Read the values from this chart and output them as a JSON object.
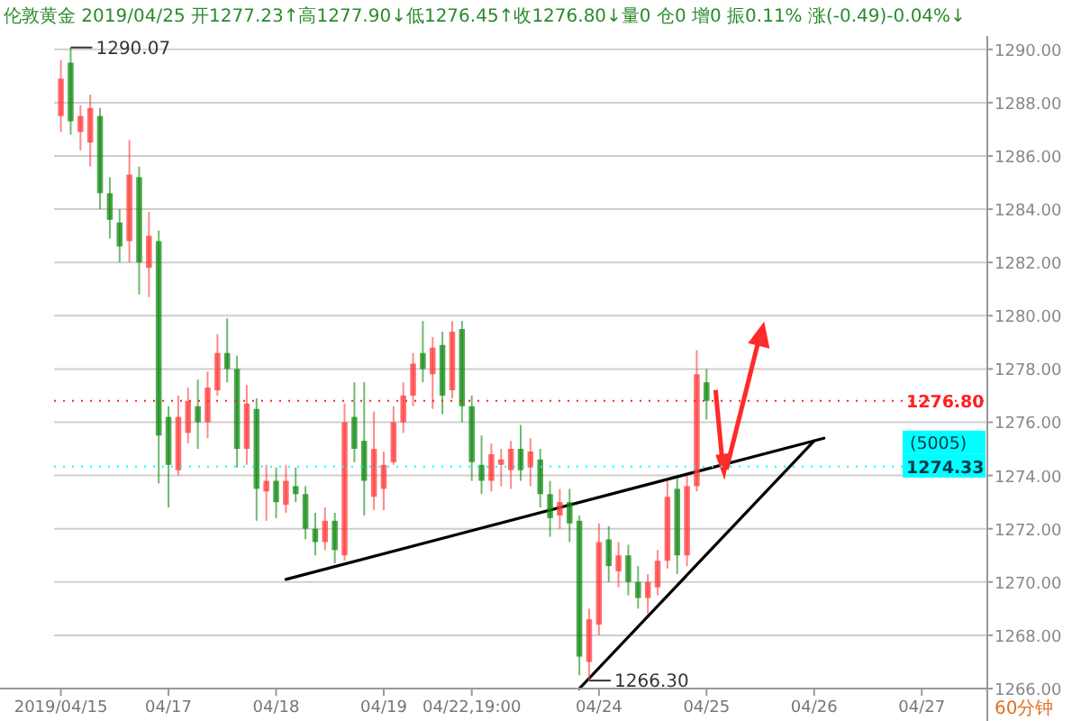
{
  "chart_data": {
    "type": "candlestick",
    "title": "伦敦黄金 2019/04/25 开1277.23↑高1277.90↓低1276.45↑收1276.80↓量0 仓0 增0 振0.11% 涨(-0.49)-0.04%↓",
    "categories": [
      "2019/04/15",
      null,
      null,
      null,
      null,
      null,
      null,
      null,
      null,
      null,
      null,
      "04/17",
      null,
      null,
      null,
      null,
      null,
      null,
      null,
      null,
      null,
      null,
      "04/18",
      null,
      null,
      null,
      null,
      null,
      null,
      null,
      null,
      null,
      null,
      "04/19",
      null,
      null,
      null,
      null,
      null,
      null,
      null,
      null,
      "04/22,19:00",
      null,
      null,
      null,
      null,
      null,
      null,
      null,
      null,
      null,
      null,
      null,
      null,
      "04/24",
      null,
      null,
      null,
      null,
      null,
      null,
      null,
      null,
      null,
      null,
      "04/25",
      null,
      null,
      null,
      null,
      null,
      null,
      null,
      null,
      null,
      null,
      "04/26",
      null,
      null,
      null,
      null,
      null,
      null,
      null,
      null,
      null,
      null,
      "04/27",
      null,
      null,
      null,
      null,
      null,
      null
    ],
    "ohlc": [
      [
        1287.5,
        1289.6,
        1286.9,
        1288.9
      ],
      [
        1289.5,
        1290.07,
        1286.8,
        1287.3
      ],
      [
        1286.9,
        1287.9,
        1286.2,
        1287.5
      ],
      [
        1286.5,
        1288.3,
        1285.6,
        1287.8
      ],
      [
        1287.5,
        1287.8,
        1284.0,
        1284.6
      ],
      [
        1284.6,
        1285.2,
        1282.9,
        1283.6
      ],
      [
        1283.5,
        1284.0,
        1282.0,
        1282.6
      ],
      [
        1282.8,
        1286.6,
        1282.0,
        1285.3
      ],
      [
        1285.2,
        1285.6,
        1280.8,
        1282.0
      ],
      [
        1281.8,
        1283.9,
        1280.7,
        1283.0
      ],
      [
        1282.8,
        1283.2,
        1273.7,
        1275.5
      ],
      [
        1276.2,
        1276.6,
        1272.8,
        1274.4
      ],
      [
        1274.2,
        1277.0,
        1274.0,
        1276.2
      ],
      [
        1275.6,
        1277.3,
        1275.2,
        1276.8
      ],
      [
        1276.6,
        1277.6,
        1275.0,
        1276.0
      ],
      [
        1276.0,
        1277.9,
        1275.4,
        1277.3
      ],
      [
        1277.2,
        1279.3,
        1277.0,
        1278.6
      ],
      [
        1278.6,
        1279.9,
        1277.5,
        1278.0
      ],
      [
        1278.0,
        1278.5,
        1274.3,
        1275.0
      ],
      [
        1275.0,
        1277.4,
        1274.4,
        1276.7
      ],
      [
        1276.5,
        1276.9,
        1272.3,
        1273.5
      ],
      [
        1273.4,
        1274.4,
        1272.3,
        1273.8
      ],
      [
        1273.8,
        1274.3,
        1272.4,
        1273.0
      ],
      [
        1272.9,
        1274.4,
        1272.6,
        1273.8
      ],
      [
        1273.6,
        1274.3,
        1273.0,
        1273.3
      ],
      [
        1273.3,
        1273.6,
        1271.6,
        1272.0
      ],
      [
        1272.0,
        1272.6,
        1271.0,
        1271.5
      ],
      [
        1271.5,
        1272.8,
        1271.2,
        1272.3
      ],
      [
        1272.3,
        1272.6,
        1270.7,
        1271.2
      ],
      [
        1271.0,
        1276.7,
        1270.8,
        1276.0
      ],
      [
        1276.2,
        1277.5,
        1274.5,
        1275.0
      ],
      [
        1275.3,
        1277.5,
        1272.5,
        1273.8
      ],
      [
        1273.2,
        1276.4,
        1272.7,
        1275.0
      ],
      [
        1273.5,
        1274.9,
        1272.7,
        1274.4
      ],
      [
        1274.5,
        1276.6,
        1274.4,
        1276.0
      ],
      [
        1276.0,
        1277.5,
        1275.6,
        1277.0
      ],
      [
        1277.0,
        1278.6,
        1276.6,
        1278.2
      ],
      [
        1278.6,
        1279.8,
        1277.5,
        1278.0
      ],
      [
        1277.8,
        1279.2,
        1276.5,
        1278.8
      ],
      [
        1278.9,
        1279.4,
        1276.3,
        1277.0
      ],
      [
        1277.2,
        1279.8,
        1276.9,
        1279.4
      ],
      [
        1279.5,
        1279.8,
        1276.0,
        1276.6
      ],
      [
        1276.6,
        1277.0,
        1273.8,
        1274.5
      ],
      [
        1274.4,
        1275.5,
        1273.3,
        1273.8
      ],
      [
        1273.8,
        1275.2,
        1273.4,
        1274.8
      ],
      [
        1274.4,
        1275.0,
        1273.6,
        1274.6
      ],
      [
        1274.2,
        1275.3,
        1273.5,
        1275.0
      ],
      [
        1275.0,
        1275.9,
        1273.8,
        1274.2
      ],
      [
        1274.3,
        1275.4,
        1273.6,
        1274.9
      ],
      [
        1274.6,
        1275.0,
        1272.8,
        1273.3
      ],
      [
        1273.3,
        1273.8,
        1271.7,
        1272.4
      ],
      [
        1272.5,
        1273.5,
        1272.0,
        1273.0
      ],
      [
        1273.0,
        1273.5,
        1271.5,
        1272.2
      ],
      [
        1272.3,
        1272.5,
        1266.5,
        1267.2
      ],
      [
        1267.0,
        1269.0,
        1266.3,
        1268.6
      ],
      [
        1268.4,
        1272.2,
        1268.0,
        1271.5
      ],
      [
        1271.6,
        1272.1,
        1270.0,
        1270.6
      ],
      [
        1270.4,
        1271.5,
        1269.8,
        1271.0
      ],
      [
        1271.0,
        1271.4,
        1269.5,
        1270.0
      ],
      [
        1270.0,
        1270.6,
        1269.0,
        1269.4
      ],
      [
        1269.4,
        1270.3,
        1268.8,
        1270.0
      ],
      [
        1269.8,
        1271.2,
        1269.5,
        1270.8
      ],
      [
        1270.8,
        1273.8,
        1270.5,
        1273.2
      ],
      [
        1273.5,
        1273.9,
        1270.3,
        1271.0
      ],
      [
        1271.0,
        1274.0,
        1270.6,
        1273.6
      ],
      [
        1273.6,
        1278.7,
        1273.4,
        1277.8
      ],
      [
        1277.5,
        1278.0,
        1276.1,
        1276.8
      ],
      null,
      null,
      null,
      null,
      null,
      null,
      null,
      null,
      null,
      null,
      null,
      null,
      null,
      null,
      null,
      null,
      null,
      null,
      null,
      null,
      null,
      null,
      null,
      null,
      null,
      null,
      null,
      null
    ],
    "series": [
      {
        "type": "line",
        "color": "#000000",
        "values": [
          null,
          null,
          null,
          null,
          null,
          null,
          null,
          null,
          null,
          null,
          null,
          null,
          null,
          null,
          null,
          null,
          null,
          null,
          null,
          null,
          null,
          null,
          null,
          1270.1,
          null,
          null,
          null,
          null,
          null,
          null,
          null,
          null,
          null,
          null,
          null,
          null,
          null,
          null,
          null,
          null,
          null,
          null,
          null,
          null,
          null,
          null,
          null,
          null,
          null,
          null,
          null,
          null,
          null,
          null,
          null,
          null,
          null,
          null,
          null,
          null,
          null,
          null,
          null,
          null,
          null,
          null,
          null,
          null,
          null,
          null,
          null,
          null,
          null,
          null,
          null,
          null,
          null,
          null,
          1275.4,
          null,
          null,
          null,
          null,
          null,
          null,
          null,
          null,
          null,
          null,
          null,
          null,
          null,
          null,
          null,
          null
        ]
      },
      {
        "type": "line",
        "color": "#000000",
        "values": [
          null,
          null,
          null,
          null,
          null,
          null,
          null,
          null,
          null,
          null,
          null,
          null,
          null,
          null,
          null,
          null,
          null,
          null,
          null,
          null,
          null,
          null,
          null,
          null,
          null,
          null,
          null,
          null,
          null,
          null,
          null,
          null,
          null,
          null,
          null,
          null,
          null,
          null,
          null,
          null,
          null,
          null,
          null,
          null,
          null,
          null,
          null,
          null,
          null,
          null,
          null,
          null,
          null,
          1266.0,
          null,
          null,
          null,
          null,
          null,
          null,
          null,
          null,
          null,
          null,
          null,
          null,
          null,
          null,
          null,
          null,
          null,
          null,
          null,
          null,
          null,
          null,
          null,
          1275.3,
          null,
          null,
          null,
          null,
          null,
          null,
          null,
          null,
          null,
          null,
          null,
          null,
          null,
          null,
          null,
          null,
          null
        ]
      }
    ],
    "ylim": [
      1266,
      1290.5
    ],
    "yticks": [
      {
        "value": 1266,
        "label": "1266.00"
      },
      {
        "value": 1268,
        "label": "1268.00"
      },
      {
        "value": 1270,
        "label": "1270.00"
      },
      {
        "value": 1272,
        "label": "1272.00"
      },
      {
        "value": 1274,
        "label": "1274.00"
      },
      {
        "value": 1276,
        "label": "1276.00"
      },
      {
        "value": 1278,
        "label": "1278.00"
      },
      {
        "value": 1280,
        "label": "1280.00"
      },
      {
        "value": 1282,
        "label": "1282.00"
      },
      {
        "value": 1284,
        "label": "1284.00"
      },
      {
        "value": 1286,
        "label": "1286.00"
      },
      {
        "value": 1288,
        "label": "1288.00"
      },
      {
        "value": 1290,
        "label": "1290.00"
      }
    ],
    "grid": "y",
    "ref_lines": [
      {
        "axis": "y",
        "value": 1276.8,
        "label": "1276.80",
        "color": "#ff2020"
      },
      {
        "axis": "y",
        "value": 1274.33,
        "label": "1274.33",
        "color": "#00ffff"
      }
    ],
    "annotations": [
      "1290.07",
      "1266.30",
      "(5005)",
      "60分钟"
    ]
  }
}
